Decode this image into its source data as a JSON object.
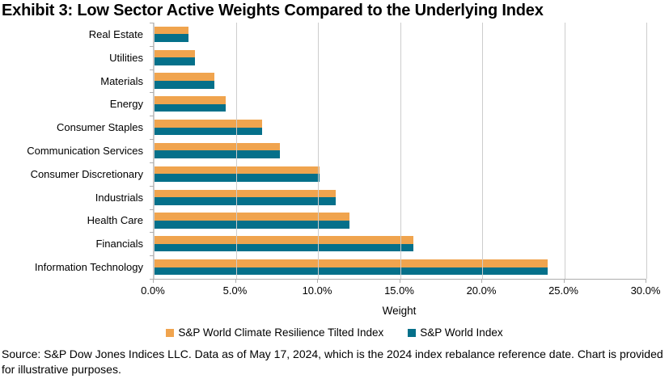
{
  "title": "Exhibit 3: Low Sector Active Weights Compared to the Underlying Index",
  "source_note": "Source: S&P Dow Jones Indices LLC. Data as of May 17, 2024, which is the 2024 index rebalance reference date. Chart is provided for illustrative purposes.",
  "colors": {
    "series1_orange": "#F0A44E",
    "series2_teal": "#05708A",
    "gridline": "#CDCDCD",
    "axis_line": "#ADADAD",
    "text": "#000000",
    "background": "#FFFFFF"
  },
  "chart_data": {
    "type": "bar",
    "orientation": "horizontal",
    "title": "Exhibit 3: Low Sector Active Weights Compared to the Underlying Index",
    "categories": [
      "Real Estate",
      "Utilities",
      "Materials",
      "Energy",
      "Consumer Staples",
      "Communication Services",
      "Consumer Discretionary",
      "Industrials",
      "Health Care",
      "Financials",
      "Information Technology"
    ],
    "series": [
      {
        "name": "S&P World Climate Resilience Tilted Index",
        "color": "#F0A44E",
        "values": [
          2.1,
          2.5,
          3.7,
          4.4,
          6.6,
          7.7,
          10.1,
          11.1,
          11.9,
          15.8,
          24.0
        ]
      },
      {
        "name": "S&P World Index",
        "color": "#05708A",
        "values": [
          2.1,
          2.5,
          3.7,
          4.4,
          6.6,
          7.7,
          10.1,
          11.1,
          11.9,
          15.8,
          24.0
        ]
      }
    ],
    "xlabel": "Weight",
    "xlim": [
      0,
      30
    ],
    "x_ticks": [
      "0.0%",
      "5.0%",
      "10.0%",
      "15.0%",
      "20.0%",
      "25.0%",
      "30.0%"
    ],
    "values_unit": "percent of index weight",
    "grid": "vertical gridlines at each 5% tick",
    "legend_position": "bottom"
  }
}
